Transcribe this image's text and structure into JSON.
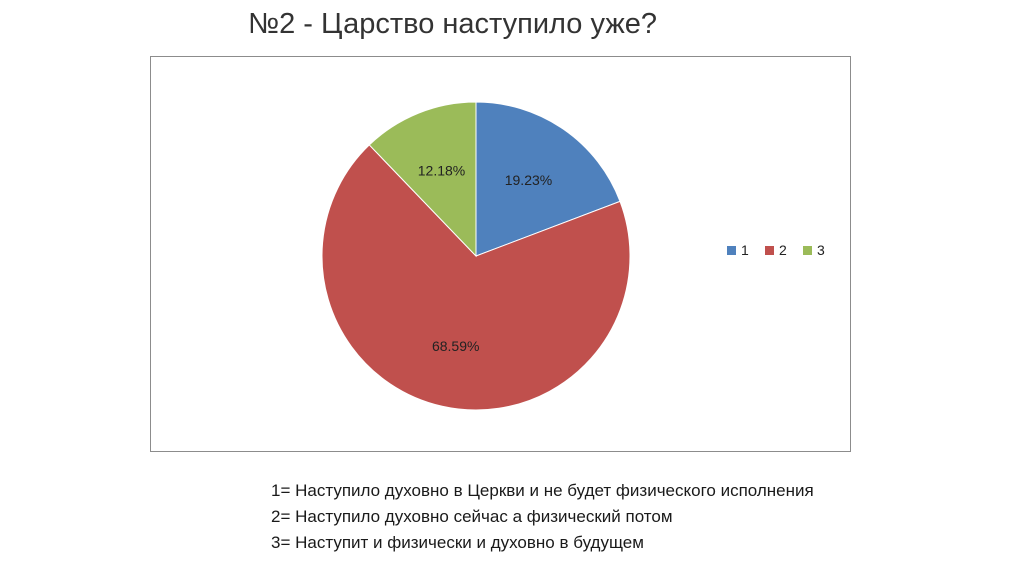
{
  "title": "№2 - Царство наступило уже?",
  "chart_data": {
    "type": "pie",
    "title": "",
    "slices": [
      {
        "label": "1",
        "value": 19.23,
        "display": "19.23%",
        "color": "#4f81bd"
      },
      {
        "label": "2",
        "value": 68.59,
        "display": "68.59%",
        "color": "#c0504d"
      },
      {
        "label": "3",
        "value": 12.18,
        "display": "12.18%",
        "color": "#9bbb59"
      }
    ],
    "start_angle_deg": 0,
    "direction": "clockwise",
    "legend": "right"
  },
  "notes": [
    "1= Наступило духовно в Церкви и не будет физического исполнения",
    "2= Наступило духовно сейчас а физический потом",
    "3= Наступит и физически и духовно в будущем"
  ]
}
